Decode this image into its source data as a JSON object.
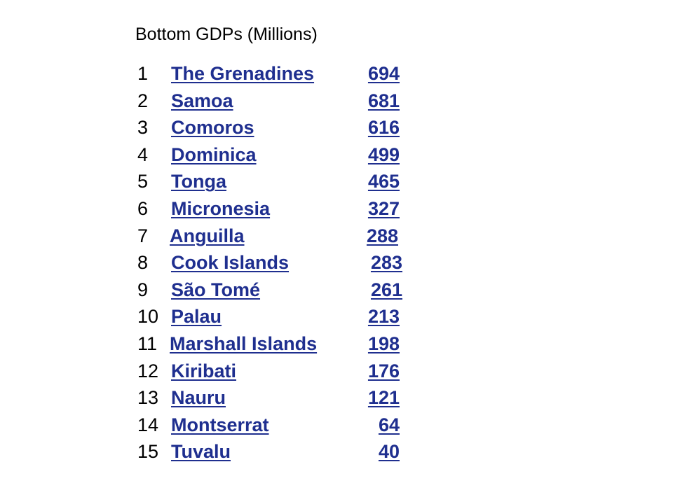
{
  "title": "Bottom GDPs (Millions)",
  "link_color": "#1f2f8f",
  "rows": [
    {
      "rank": "1",
      "country": "The Grenadines",
      "gdp": "694"
    },
    {
      "rank": "2",
      "country": "Samoa",
      "gdp": "681"
    },
    {
      "rank": "3",
      "country": "Comoros",
      "gdp": "616"
    },
    {
      "rank": "4",
      "country": "Dominica",
      "gdp": "499"
    },
    {
      "rank": "5",
      "country": "Tonga",
      "gdp": "465"
    },
    {
      "rank": "6",
      "country": "Micronesia",
      "gdp": "327"
    },
    {
      "rank": "7",
      "country": "Anguilla",
      "gdp": "288"
    },
    {
      "rank": "8",
      "country": "Cook Islands",
      "gdp": "283"
    },
    {
      "rank": "9",
      "country": "São Tomé",
      "gdp": "261"
    },
    {
      "rank": "10",
      "country": "Palau",
      "gdp": "213"
    },
    {
      "rank": "11",
      "country": "Marshall Islands",
      "gdp": "198"
    },
    {
      "rank": "12",
      "country": "Kiribati",
      "gdp": "176"
    },
    {
      "rank": "13",
      "country": "Nauru",
      "gdp": "121"
    },
    {
      "rank": "14",
      "country": "Montserrat",
      "gdp": "64"
    },
    {
      "rank": "15",
      "country": "Tuvalu",
      "gdp": "40"
    }
  ]
}
